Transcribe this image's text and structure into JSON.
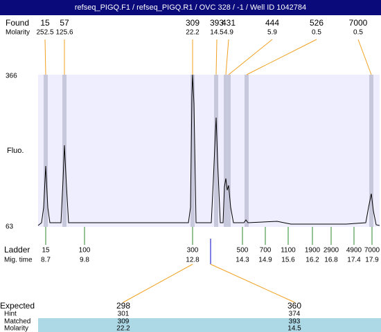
{
  "title": "refseq_PIGQ.F1 / refseq_PIGQ.R1 / OVC 328 / -1 / Well ID 1042784",
  "found": {
    "label": "Found",
    "molarity_label": "Molarity",
    "peaks": [
      {
        "size": "15",
        "molarity": "252.5"
      },
      {
        "size": "57",
        "molarity": "125.6"
      },
      {
        "size": "309",
        "molarity": "22.2"
      },
      {
        "size": "393",
        "molarity": "14.5"
      },
      {
        "size": "431",
        "molarity": "4.9"
      },
      {
        "size": "444",
        "molarity": "5.9"
      },
      {
        "size": "526",
        "molarity": "0.5"
      },
      {
        "size": "7000",
        "molarity": "0.5"
      }
    ]
  },
  "plot": {
    "y_label": "Fluo.",
    "y_max": "366",
    "y_min": "63"
  },
  "ladder": {
    "label": "Ladder",
    "time_label": "Mig. time",
    "points": [
      {
        "size": "15",
        "time": "8.7"
      },
      {
        "size": "100",
        "time": "9.8"
      },
      {
        "size": "300",
        "time": "12.8"
      },
      {
        "size": "500",
        "time": "14.3"
      },
      {
        "size": "700",
        "time": "14.9"
      },
      {
        "size": "1100",
        "time": "15.6"
      },
      {
        "size": "1900",
        "time": "16.2"
      },
      {
        "size": "2900",
        "time": "16.8"
      },
      {
        "size": "4900",
        "time": "17.4"
      },
      {
        "size": "7000",
        "time": "17.9"
      }
    ]
  },
  "expected": {
    "label": "Expected",
    "hint_label": "Hint",
    "matched_label": "Matched",
    "molarity_label": "Molarity",
    "columns": [
      {
        "expected": "298",
        "hint": "301",
        "matched": "309",
        "molarity": "22.2"
      },
      {
        "expected": "360",
        "hint": "374",
        "matched": "393",
        "molarity": "14.5"
      }
    ]
  }
}
